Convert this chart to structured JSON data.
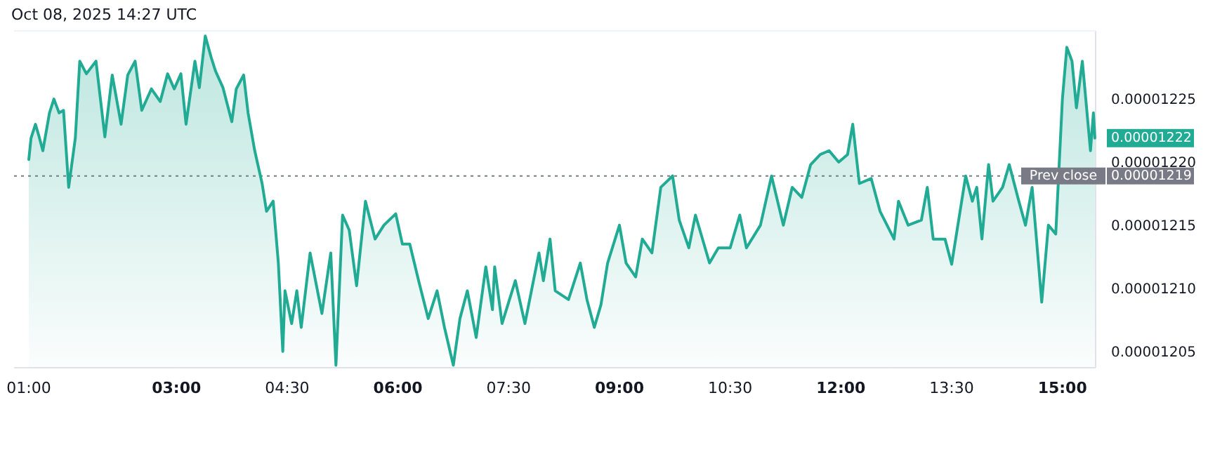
{
  "chart_data": {
    "type": "area",
    "title": "Oct 08, 2025 14:27 UTC",
    "x": [
      1.0,
      1.03,
      1.09,
      1.14,
      1.19,
      1.28,
      1.34,
      1.41,
      1.47,
      1.54,
      1.63,
      1.69,
      1.78,
      1.91,
      2.03,
      2.13,
      2.25,
      2.34,
      2.44,
      2.53,
      2.66,
      2.78,
      2.88,
      2.97,
      3.06,
      3.13,
      3.25,
      3.31,
      3.39,
      3.47,
      3.53,
      3.63,
      3.75,
      3.81,
      3.91,
      3.97,
      4.06,
      4.16,
      4.22,
      4.31,
      4.38,
      4.44,
      4.47,
      4.56,
      4.63,
      4.69,
      4.81,
      4.97,
      5.09,
      5.16,
      5.25,
      5.34,
      5.44,
      5.56,
      5.69,
      5.81,
      5.97,
      6.06,
      6.16,
      6.28,
      6.41,
      6.53,
      6.63,
      6.75,
      6.84,
      6.94,
      7.06,
      7.19,
      7.28,
      7.31,
      7.41,
      7.59,
      7.72,
      7.91,
      7.97,
      8.06,
      8.13,
      8.31,
      8.47,
      8.56,
      8.66,
      8.75,
      8.84,
      9.0,
      9.09,
      9.22,
      9.31,
      9.44,
      9.56,
      9.72,
      9.81,
      9.94,
      10.03,
      10.22,
      10.34,
      10.5,
      10.63,
      10.72,
      10.91,
      11.06,
      11.22,
      11.34,
      11.47,
      11.59,
      11.72,
      11.84,
      11.97,
      12.09,
      12.16,
      12.25,
      12.41,
      12.53,
      12.72,
      12.78,
      12.91,
      13.09,
      13.17,
      13.25,
      13.41,
      13.5,
      13.69,
      13.78,
      13.84,
      13.91,
      14.0,
      14.06,
      14.19,
      14.28,
      14.41,
      14.5,
      14.59,
      14.72,
      14.81,
      14.91,
      14.97,
      15.0,
      15.06,
      15.13,
      15.19,
      15.27,
      15.38,
      15.42,
      15.44
    ],
    "series": [
      {
        "color": "#22ab94",
        "values": [
          1.2203e-05,
          1.222e-05,
          1.2231e-05,
          1.2221e-05,
          1.221e-05,
          1.224e-05,
          1.2251e-05,
          1.224e-05,
          1.2242e-05,
          1.2181e-05,
          1.222e-05,
          1.2281e-05,
          1.2271e-05,
          1.2281e-05,
          1.2221e-05,
          1.227e-05,
          1.2231e-05,
          1.227e-05,
          1.2281e-05,
          1.2242e-05,
          1.2259e-05,
          1.2249e-05,
          1.2271e-05,
          1.2259e-05,
          1.2271e-05,
          1.2231e-05,
          1.2281e-05,
          1.226e-05,
          1.2301e-05,
          1.2284e-05,
          1.2273e-05,
          1.226e-05,
          1.2233e-05,
          1.2259e-05,
          1.227e-05,
          1.224e-05,
          1.221e-05,
          1.2184e-05,
          1.2162e-05,
          1.217e-05,
          1.2121e-05,
          1.2051e-05,
          1.2099e-05,
          1.2073e-05,
          1.2099e-05,
          1.207e-05,
          1.2129e-05,
          1.2081e-05,
          1.2129e-05,
          1.204e-05,
          1.2159e-05,
          1.2147e-05,
          1.2103e-05,
          1.217e-05,
          1.214e-05,
          1.2151e-05,
          1.216e-05,
          1.2136e-05,
          1.2136e-05,
          1.2107e-05,
          1.2077e-05,
          1.2099e-05,
          1.207e-05,
          1.204e-05,
          1.2077e-05,
          1.2099e-05,
          1.2062e-05,
          1.2118e-05,
          1.2084e-05,
          1.2118e-05,
          1.2073e-05,
          1.2107e-05,
          1.2073e-05,
          1.2129e-05,
          1.2107e-05,
          1.214e-05,
          1.2099e-05,
          1.2092e-05,
          1.2121e-05,
          1.2092e-05,
          1.207e-05,
          1.2088e-05,
          1.2121e-05,
          1.2151e-05,
          1.2121e-05,
          1.211e-05,
          1.214e-05,
          1.2129e-05,
          1.2181e-05,
          1.219e-05,
          1.2155e-05,
          1.2133e-05,
          1.2159e-05,
          1.2121e-05,
          1.2133e-05,
          1.2133e-05,
          1.2159e-05,
          1.2133e-05,
          1.2151e-05,
          1.219e-05,
          1.2151e-05,
          1.2181e-05,
          1.2173e-05,
          1.2199e-05,
          1.2207e-05,
          1.221e-05,
          1.2201e-05,
          1.2207e-05,
          1.2231e-05,
          1.2184e-05,
          1.2188e-05,
          1.2162e-05,
          1.214e-05,
          1.217e-05,
          1.2151e-05,
          1.2155e-05,
          1.2181e-05,
          1.214e-05,
          1.214e-05,
          1.212e-05,
          1.219e-05,
          1.217e-05,
          1.2181e-05,
          1.214e-05,
          1.2199e-05,
          1.217e-05,
          1.2181e-05,
          1.2199e-05,
          1.217e-05,
          1.2151e-05,
          1.2181e-05,
          1.209e-05,
          1.2151e-05,
          1.2144e-05,
          null,
          1.2251e-05,
          1.2292e-05,
          1.2281e-05,
          1.2244e-05,
          1.2281e-05,
          1.221e-05,
          1.224e-05,
          1.222e-05
        ]
      }
    ],
    "xlim": [
      0.8,
      15.45
    ],
    "xticks": [
      {
        "value": 1,
        "label": "01:00"
      },
      {
        "value": 3,
        "label": "03:00"
      },
      {
        "value": 4.5,
        "label": "04:30"
      },
      {
        "value": 6,
        "label": "06:00"
      },
      {
        "value": 7.5,
        "label": "07:30"
      },
      {
        "value": 9,
        "label": "09:00"
      },
      {
        "value": 10.5,
        "label": "10:30"
      },
      {
        "value": 12,
        "label": "12:00"
      },
      {
        "value": 13.5,
        "label": "13:30"
      },
      {
        "value": 15,
        "label": "15:00"
      }
    ],
    "ylim": [
      1.2038e-05,
      1.2305e-05
    ],
    "yticks": [
      {
        "value": 1.205e-05,
        "label": "0.00001205"
      },
      {
        "value": 1.21e-05,
        "label": "0.00001210"
      },
      {
        "value": 1.215e-05,
        "label": "0.00001215"
      },
      {
        "value": 1.22e-05,
        "label": "0.00001220"
      },
      {
        "value": 1.225e-05,
        "label": "0.00001225"
      }
    ],
    "ref_lines": [
      {
        "axis": "y",
        "value": 1.219e-05,
        "label": "Prev close",
        "color": "#787b86",
        "line_style": "dotted"
      }
    ],
    "annotations": [
      "0.00001222",
      "0.00001219"
    ],
    "grid": false
  }
}
